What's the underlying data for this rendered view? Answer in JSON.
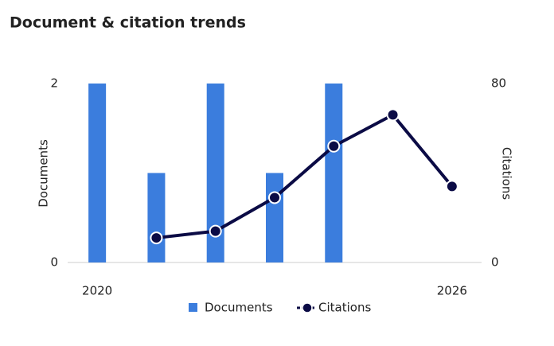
{
  "chart_data": {
    "type": "combo",
    "title": "Document & citation trends",
    "x": [
      2020,
      2021,
      2022,
      2023,
      2024,
      2025,
      2026
    ],
    "xlim": [
      2019.5,
      2026.5
    ],
    "xticks": [
      2020,
      2026
    ],
    "ylim": [
      0,
      2
    ],
    "yticks": [
      0,
      2
    ],
    "ylabel": "Documents",
    "y2lim": [
      0,
      80
    ],
    "y2ticks": [
      0,
      80
    ],
    "y2label": "Citations",
    "series": [
      {
        "name": "Documents",
        "type": "bar",
        "color": "#3b7ddd",
        "values": [
          2,
          1,
          2,
          1,
          2,
          null,
          null
        ]
      },
      {
        "name": "Citations",
        "type": "line",
        "axis": "y2",
        "color": "#0b0b45",
        "values": [
          null,
          11,
          14,
          29,
          52,
          66,
          34
        ]
      }
    ]
  }
}
